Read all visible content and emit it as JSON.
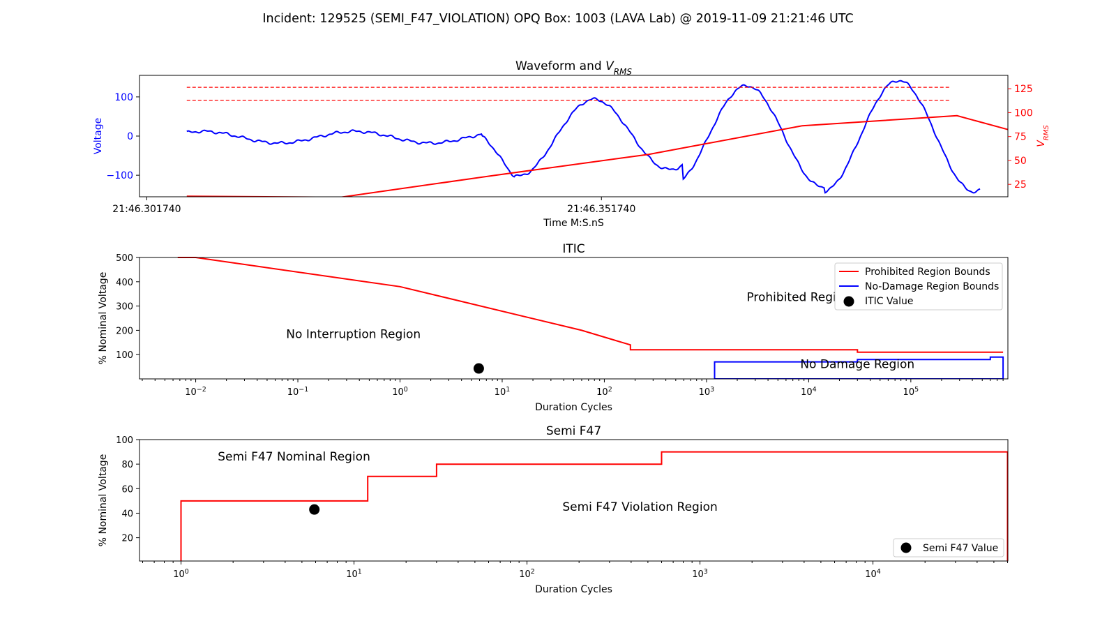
{
  "title": "Incident: 129525 (SEMI_F47_VIOLATION) OPQ Box: 1003 (LAVA Lab) @ 2019-11-09 21:21:46 UTC",
  "colors": {
    "red": "#ff0000",
    "blue": "#0000ff",
    "black": "#000000"
  },
  "chart_data": [
    {
      "type": "line",
      "title": "Waveform and V_RMS",
      "title_main": "Waveform and ",
      "title_v": "V",
      "title_sub": "RMS",
      "xlabel": "Time M:S.nS",
      "x_tick_labels": [
        "21:46.301740",
        "21:46.351740"
      ],
      "xlim": [
        -0.0008,
        0.0947
      ],
      "ylabel_left": "Voltage",
      "ylim_left": [
        -155,
        155
      ],
      "yticks_left": [
        -100,
        0,
        100
      ],
      "yticks_left_labels": [
        "−100",
        "0",
        "100"
      ],
      "ylabel_right_v": "V",
      "ylabel_right_sub": "RMS",
      "ylim_right": [
        12,
        139
      ],
      "yticks_right": [
        25,
        50,
        75,
        100,
        125
      ],
      "yticks_right_labels": [
        "25",
        "50",
        "75",
        "100",
        "125"
      ],
      "thresholds_right": [
        126.5,
        113.0
      ],
      "threshold_x": [
        0.0044,
        0.0883
      ],
      "series": [
        {
          "axis": "right",
          "color": "#ff0000",
          "x": [
            0.0044,
            0.0213,
            0.0383,
            0.0552,
            0.0721,
            0.0891,
            0.106
          ],
          "y": [
            12.5,
            11.5,
            34.5,
            56.4,
            86.3,
            96.8,
            53.2
          ]
        }
      ]
    },
    {
      "type": "line",
      "title": "ITIC",
      "xscale": "log",
      "xlabel": "Duration Cycles",
      "xlim_log10": [
        -2.55,
        5.95
      ],
      "xticks_log10": [
        -2,
        -1,
        0,
        1,
        2,
        3,
        4,
        5
      ],
      "ylabel": "% Nominal Voltage",
      "ylim": [
        0,
        500
      ],
      "yticks": [
        100,
        200,
        300,
        400,
        500
      ],
      "annotations": [
        {
          "text": "Prohibited Region",
          "x": 8000,
          "y": 320
        },
        {
          "text": "No Interruption Region",
          "x": 0.35,
          "y": 168
        },
        {
          "text": "No Damage Region",
          "x": 30000,
          "y": 45
        }
      ],
      "series": [
        {
          "name": "Prohibited Region Bounds",
          "color": "#ff0000",
          "x": [
            0.00667,
            0.01,
            1.0,
            60,
            180,
            180,
            30000,
            30000,
            800000
          ],
          "y": [
            500,
            500,
            380,
            200,
            140,
            120,
            120,
            110,
            110
          ]
        },
        {
          "name": "No-Damage Region Bounds",
          "color": "#0000ff",
          "x": [
            1200,
            1200,
            30000,
            30000,
            600000,
            600000,
            800000,
            800000,
            1200,
            1200
          ],
          "y": [
            0,
            70,
            70,
            80,
            80,
            90,
            90,
            0,
            0,
            70
          ]
        }
      ],
      "points": [
        {
          "name": "ITIC Value",
          "x": 5.9,
          "y": 43
        }
      ],
      "legend": {
        "position": "top-right",
        "entries": [
          "Prohibited Region Bounds",
          "No-Damage Region Bounds",
          "ITIC Value"
        ]
      }
    },
    {
      "type": "line",
      "title": "Semi F47",
      "xscale": "log",
      "xlabel": "Duration Cycles",
      "xlim_log10": [
        -0.24,
        4.78
      ],
      "xticks_log10": [
        0,
        1,
        2,
        3,
        4
      ],
      "ylabel": "% Nominal Voltage",
      "ylim": [
        1,
        100
      ],
      "yticks": [
        20,
        40,
        60,
        80,
        100
      ],
      "annotations": [
        {
          "text": "Semi F47 Nominal Region",
          "x": 4.5,
          "y": 83
        },
        {
          "text": "Semi F47 Violation Region",
          "x": 450,
          "y": 42
        }
      ],
      "series": [
        {
          "name": "Semi F47 Bounds",
          "color": "#ff0000",
          "x": [
            1,
            1,
            12,
            12,
            30,
            30,
            600,
            600,
            60000,
            60000
          ],
          "y": [
            0,
            50,
            50,
            70,
            70,
            80,
            80,
            90,
            90,
            0
          ]
        }
      ],
      "points": [
        {
          "name": "Semi F47 Value",
          "x": 5.9,
          "y": 43
        }
      ],
      "legend": {
        "position": "bottom-right",
        "entries": [
          "Semi F47 Value"
        ]
      }
    }
  ]
}
